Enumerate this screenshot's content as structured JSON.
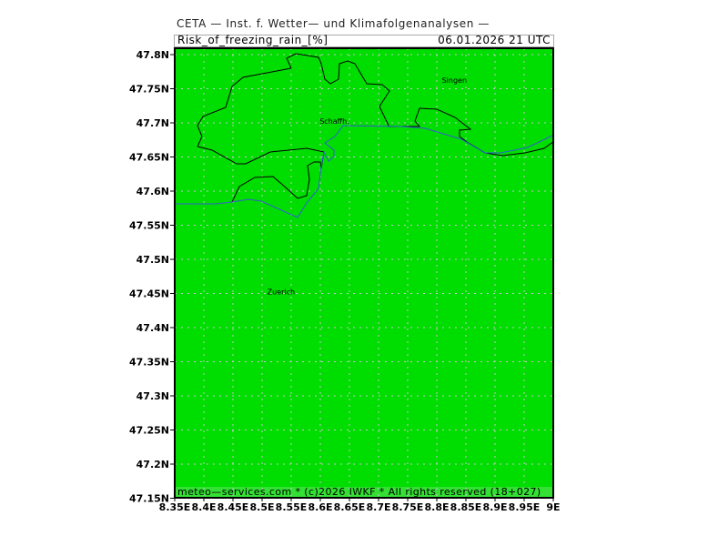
{
  "header": {
    "title": "CETA — Inst. f. Wetter— und Klimafolgenanalysen —",
    "variable": "Risk_of_freezing_rain_[%]",
    "datetime": "06.01.2026  21 UTC"
  },
  "map": {
    "fill_color": "#00dd00",
    "footer_color": "#33e033",
    "border_color": "#000000",
    "river_color": "#3060d0",
    "grid": "dotted",
    "lon_range": [
      8.35,
      9.0
    ],
    "lat_range": [
      47.15,
      47.8
    ],
    "y_ticks": [
      "47.8N",
      "47.75N",
      "47.7N",
      "47.65N",
      "47.6N",
      "47.55N",
      "47.5N",
      "47.45N",
      "47.4N",
      "47.35N",
      "47.3N",
      "47.25N",
      "47.2N",
      "47.15N"
    ],
    "x_ticks": [
      "8.35E",
      "8.4E",
      "8.45E",
      "8.5E",
      "8.55E",
      "8.6E",
      "8.65E",
      "8.7E",
      "8.75E",
      "8.8E",
      "8.85E",
      "8.9E",
      "8.95E",
      "9E"
    ],
    "cities": [
      {
        "name": "Schaffh.",
        "lon": 8.63,
        "lat": 47.7
      },
      {
        "name": "Singen",
        "lon": 8.84,
        "lat": 47.76
      },
      {
        "name": "Zuerich",
        "lon": 8.54,
        "lat": 47.45
      }
    ],
    "footer": "meteo—services.com * (c)2026 IWKF * All rights reserved (18+027)"
  }
}
